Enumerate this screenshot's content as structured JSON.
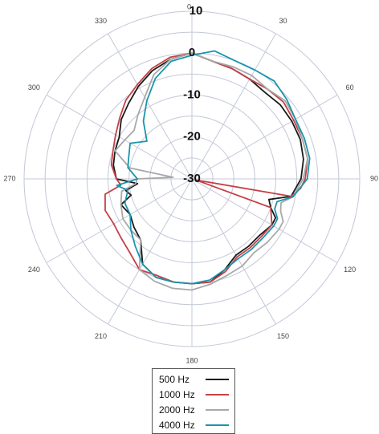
{
  "chart_data": {
    "type": "polar",
    "title": "",
    "angle_unit": "degrees",
    "angle_ticks": [
      "0",
      "30",
      "60",
      "90",
      "120",
      "150",
      "180",
      "210",
      "240",
      "270",
      "300",
      "330"
    ],
    "angle_tick_values": [
      0,
      30,
      60,
      90,
      120,
      150,
      180,
      210,
      240,
      270,
      300,
      330
    ],
    "radial_ticks": [
      "10",
      "0",
      "-10",
      "-20",
      "-30"
    ],
    "radial_tick_values": [
      10,
      0,
      -10,
      -20,
      -30
    ],
    "rlim": [
      -30,
      10
    ],
    "grid": true,
    "legend": "bottom-center",
    "series": [
      {
        "name": "500 Hz",
        "color": "#1a1a1a",
        "angles": [
          0,
          10,
          20,
          30,
          40,
          50,
          60,
          70,
          80,
          90,
          100,
          105,
          110,
          115,
          120,
          130,
          140,
          150,
          160,
          170,
          180,
          190,
          200,
          210,
          220,
          230,
          240,
          250,
          255,
          260,
          265,
          270,
          280,
          290,
          300,
          310,
          320,
          330,
          340,
          350
        ],
        "values": [
          0,
          -1.5,
          -2,
          -2.5,
          -3,
          -2.5,
          -2.5,
          -2.5,
          -3,
          -4,
          -6,
          -11,
          -10,
          -8,
          -8,
          -9,
          -9,
          -9,
          -7,
          -5,
          -5,
          -5,
          -5,
          -6.5,
          -11,
          -12,
          -13,
          -12,
          -15,
          -14,
          -17,
          -12,
          -11,
          -10.5,
          -10,
          -8,
          -6.5,
          -4.5,
          -2.5,
          -1
        ]
      },
      {
        "name": "1000 Hz",
        "color": "#c64047",
        "angles": [
          0,
          10,
          20,
          30,
          40,
          50,
          60,
          70,
          80,
          90,
          95,
          100,
          105,
          110,
          120,
          130,
          140,
          150,
          160,
          170,
          180,
          190,
          200,
          210,
          220,
          230,
          240,
          250,
          260,
          265,
          270,
          280,
          290,
          300,
          310,
          320,
          330,
          340,
          350
        ],
        "values": [
          0,
          -1.5,
          -2,
          -2.5,
          -2,
          -1.5,
          -2,
          -2,
          -2,
          -3,
          -4,
          -6,
          -29,
          -10,
          -8,
          -8.5,
          -8.5,
          -8.5,
          -6.5,
          -5,
          -5,
          -5,
          -5.5,
          -5,
          -7,
          -8,
          -8.5,
          -8,
          -9,
          -13,
          -12,
          -10.5,
          -10,
          -9,
          -7.5,
          -5.5,
          -4,
          -2,
          -0.5
        ]
      },
      {
        "name": "2000 Hz",
        "color": "#a8a8a8",
        "angles": [
          0,
          10,
          20,
          30,
          40,
          50,
          60,
          70,
          80,
          90,
          100,
          105,
          110,
          115,
          120,
          130,
          140,
          150,
          160,
          170,
          180,
          190,
          200,
          210,
          220,
          230,
          240,
          250,
          260,
          265,
          270,
          275,
          280,
          290,
          300,
          310,
          320,
          330,
          340,
          350
        ],
        "values": [
          0,
          -1.5,
          -1.5,
          -1.5,
          -2,
          -1,
          -1.5,
          -2,
          -2,
          -3.5,
          -5.5,
          -8,
          -7.5,
          -6,
          -6,
          -6.5,
          -7,
          -6,
          -5.5,
          -4.5,
          -3.5,
          -3.5,
          -4,
          -5,
          -11,
          -11,
          -11,
          -12,
          -13,
          -16.5,
          -17,
          -25.5,
          -15,
          -10.5,
          -11.5,
          -12,
          -10,
          -7.5,
          -3.5,
          -1
        ]
      },
      {
        "name": "4000 Hz",
        "color": "#1a95ac",
        "angles": [
          0,
          10,
          20,
          30,
          40,
          50,
          60,
          70,
          80,
          90,
          100,
          105,
          110,
          115,
          120,
          130,
          140,
          150,
          160,
          170,
          180,
          190,
          200,
          210,
          220,
          230,
          240,
          250,
          260,
          265,
          270,
          280,
          290,
          300,
          310,
          320,
          330,
          340,
          350
        ],
        "values": [
          -0.5,
          1,
          0,
          0,
          0.5,
          -0.5,
          -1.5,
          -1.5,
          -1.5,
          -2.5,
          -5.5,
          -9,
          -9,
          -7.5,
          -7.5,
          -8,
          -8,
          -8,
          -7,
          -5.5,
          -5,
          -5,
          -5,
          -6.5,
          -9,
          -11,
          -13,
          -13,
          -14.5,
          -12,
          -17,
          -14.5,
          -14,
          -13,
          -16,
          -12,
          -8.5,
          -4.5,
          -1.5
        ]
      }
    ]
  }
}
